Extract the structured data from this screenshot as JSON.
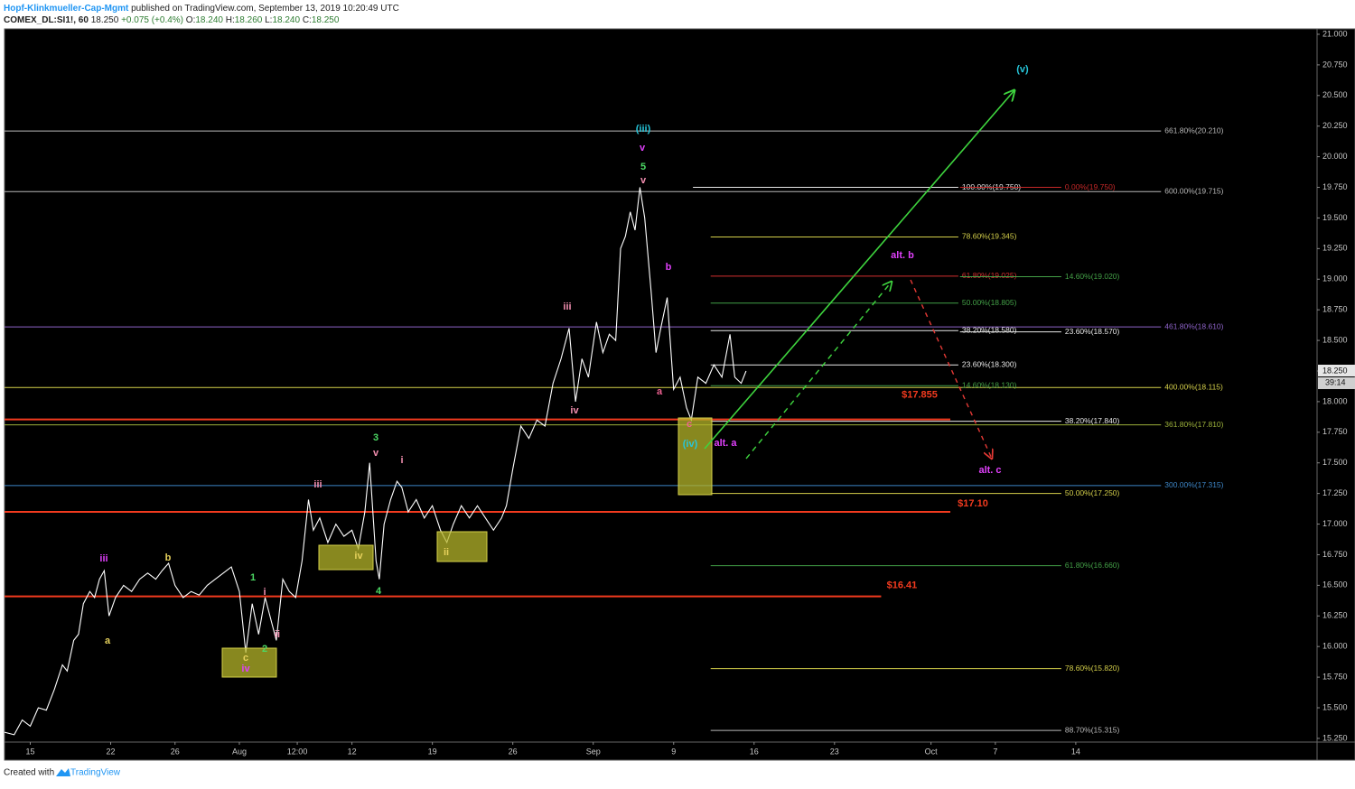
{
  "header": {
    "publisher": "Hopf-Klinkmueller-Cap-Mgmt",
    "published": "published on TradingView.com, September 13, 2019 10:20:49 UTC",
    "symbol": "COMEX_DL:SI1!, 60",
    "last": "18.250",
    "change": "+0.075 (+0.4%)",
    "ohlc": [
      {
        "key": "O:",
        "value": "18.240"
      },
      {
        "key": "H:",
        "value": "18.260"
      },
      {
        "key": "L:",
        "value": "18.240"
      },
      {
        "key": "C:",
        "value": "18.250"
      }
    ]
  },
  "footer": {
    "created": "Created with",
    "brand": "TradingView"
  },
  "chart_data": {
    "type": "line",
    "color": "#ffffff",
    "x": [
      -1.6,
      -1,
      -0.5,
      0,
      0.5,
      1,
      1.5,
      2,
      2.3,
      2.7,
      3,
      3.3,
      3.7,
      4,
      4.3,
      4.6,
      4.9,
      5.3,
      5.8,
      6.3,
      6.8,
      7.3,
      7.8,
      8.2,
      8.6,
      9,
      9.5,
      10,
      10.5,
      11,
      11.5,
      12,
      12.5,
      13,
      13.4,
      13.8,
      14.2,
      14.6,
      15,
      15.3,
      15.7,
      16.1,
      16.5,
      16.9,
      17.3,
      17.6,
      18,
      18.5,
      19,
      19.5,
      20,
      20.4,
      20.8,
      21.1,
      21.5,
      21.7,
      22,
      22.4,
      22.8,
      23.1,
      23.5,
      24,
      24.5,
      25,
      25.5,
      25.9,
      26.3,
      26.8,
      27.3,
      27.8,
      28.3,
      28.8,
      29.3,
      29.6,
      30,
      30.5,
      31,
      31.5,
      32,
      32.5,
      33,
      33.5,
      33.9,
      34.3,
      34.7,
      35.2,
      35.6,
      36,
      36.4,
      36.7,
      37,
      37.3,
      37.6,
      37.9,
      38.2,
      38.6,
      38.9,
      39.2,
      39.6,
      40,
      40.4,
      40.8,
      41.1,
      41.5,
      42,
      42.5,
      43,
      43.5,
      43.8,
      44.2,
      44.5
    ],
    "values": [
      15.3,
      15.28,
      15.4,
      15.35,
      15.5,
      15.48,
      15.65,
      15.85,
      15.8,
      16.05,
      16.1,
      16.35,
      16.45,
      16.4,
      16.55,
      16.62,
      16.25,
      16.4,
      16.5,
      16.45,
      16.55,
      16.6,
      16.55,
      16.62,
      16.68,
      16.5,
      16.4,
      16.45,
      16.42,
      16.5,
      16.55,
      16.6,
      16.65,
      16.45,
      15.95,
      16.35,
      16.1,
      16.4,
      16.2,
      16.05,
      16.55,
      16.45,
      16.4,
      16.7,
      17.2,
      16.95,
      17.05,
      16.85,
      17.0,
      16.9,
      16.95,
      16.8,
      17.1,
      17.5,
      16.7,
      16.55,
      17.0,
      17.2,
      17.35,
      17.3,
      17.1,
      17.2,
      17.05,
      17.15,
      16.95,
      16.85,
      17.0,
      17.15,
      17.05,
      17.15,
      17.05,
      16.95,
      17.05,
      17.15,
      17.45,
      17.8,
      17.7,
      17.85,
      17.8,
      18.15,
      18.35,
      18.6,
      18.0,
      18.35,
      18.2,
      18.65,
      18.4,
      18.55,
      18.5,
      19.25,
      19.35,
      19.55,
      19.4,
      19.75,
      19.5,
      18.9,
      18.4,
      18.6,
      18.85,
      18.1,
      18.2,
      17.95,
      17.85,
      18.2,
      18.15,
      18.3,
      18.2,
      18.55,
      18.2,
      18.15,
      18.25
    ],
    "xlim": [
      -1.6,
      80
    ],
    "ylim": [
      15.22,
      21.044
    ],
    "xticks": [
      {
        "value": 0,
        "label": "15"
      },
      {
        "value": 5,
        "label": "22"
      },
      {
        "value": 9,
        "label": "26"
      },
      {
        "value": 13,
        "label": "Aug"
      },
      {
        "value": 16.6,
        "label": "12:00"
      },
      {
        "value": 20,
        "label": "12"
      },
      {
        "value": 25,
        "label": "19"
      },
      {
        "value": 30,
        "label": "26"
      },
      {
        "value": 35,
        "label": "Sep"
      },
      {
        "value": 40,
        "label": "9"
      },
      {
        "value": 45,
        "label": "16"
      },
      {
        "value": 50,
        "label": "23"
      },
      {
        "value": 56,
        "label": "Oct"
      },
      {
        "value": 60,
        "label": "7"
      },
      {
        "value": 65,
        "label": "14"
      }
    ],
    "yticks": [
      {
        "value": 15.25,
        "label": "15.250"
      },
      {
        "value": 15.5,
        "label": "15.500"
      },
      {
        "value": 15.75,
        "label": "15.750"
      },
      {
        "value": 16,
        "label": "16.000"
      },
      {
        "value": 16.25,
        "label": "16.250"
      },
      {
        "value": 16.5,
        "label": "16.500"
      },
      {
        "value": 16.75,
        "label": "16.750"
      },
      {
        "value": 17,
        "label": "17.000"
      },
      {
        "value": 17.25,
        "label": "17.250"
      },
      {
        "value": 17.5,
        "label": "17.500"
      },
      {
        "value": 17.75,
        "label": "17.750"
      },
      {
        "value": 18,
        "label": "18.000"
      },
      {
        "value": 18.25,
        "label": "18.250"
      },
      {
        "value": 18.5,
        "label": "18.500"
      },
      {
        "value": 18.75,
        "label": "18.750"
      },
      {
        "value": 19,
        "label": "19.000"
      },
      {
        "value": 19.25,
        "label": "19.250"
      },
      {
        "value": 19.5,
        "label": "19.500"
      },
      {
        "value": 19.75,
        "label": "19.750"
      },
      {
        "value": 20,
        "label": "20.000"
      },
      {
        "value": 20.25,
        "label": "20.250"
      },
      {
        "value": 20.5,
        "label": "20.500"
      },
      {
        "value": 20.75,
        "label": "20.750"
      },
      {
        "value": 21,
        "label": "21.000"
      }
    ],
    "price_tag": {
      "value": 18.25,
      "label": "18.250",
      "countdown": "39:14"
    },
    "levels": [
      {
        "value": 20.21,
        "label": "661.80%(20.210)",
        "color": "#b8b8b8",
        "from": -1.6,
        "to": 70.3
      },
      {
        "value": 19.715,
        "label": "600.00%(19.715)",
        "color": "#b8b8b8",
        "from": -1.6,
        "to": 70.3
      },
      {
        "value": 18.61,
        "label": "461.80%(18.610)",
        "color": "#8e63c9",
        "from": -1.6,
        "to": 70.3
      },
      {
        "value": 18.115,
        "label": "400.00%(18.115)",
        "color": "#d4cf4a",
        "from": -1.6,
        "to": 70.3
      },
      {
        "value": 17.81,
        "label": "361.80%(17.810)",
        "color": "#9bb03a",
        "from": -1.6,
        "to": 70.3
      },
      {
        "value": 17.315,
        "label": "300.00%(17.315)",
        "color": "#3d85c6",
        "from": -1.6,
        "to": 70.3
      },
      {
        "value": 19.75,
        "label": "100.00%(19.750)",
        "color": "#e8e8e8",
        "from": 41.2,
        "to": 57.7
      },
      {
        "value": 19.75,
        "label": "0.00%(19.750)",
        "color": "#c62828",
        "from": 57.8,
        "to": 64.1
      },
      {
        "value": 19.345,
        "label": "78.60%(19.345)",
        "color": "#d4cf4a",
        "from": 42.3,
        "to": 57.7
      },
      {
        "value": 19.025,
        "label": "61.80%(19.025)",
        "color": "#d32f2f",
        "from": 42.3,
        "to": 57.7
      },
      {
        "value": 19.02,
        "label": "14.60%(19.020)",
        "color": "#43a047",
        "from": 57.8,
        "to": 64.1
      },
      {
        "value": 18.805,
        "label": "50.00%(18.805)",
        "color": "#43a047",
        "from": 42.3,
        "to": 57.7
      },
      {
        "value": 18.58,
        "label": "38.20%(18.580)",
        "color": "#e8e8e8",
        "from": 42.3,
        "to": 57.7
      },
      {
        "value": 18.57,
        "label": "23.60%(18.570)",
        "color": "#e8e8e8",
        "from": 57.8,
        "to": 64.1
      },
      {
        "value": 18.3,
        "label": "23.60%(18.300)",
        "color": "#e8e8e8",
        "from": 42.3,
        "to": 57.7
      },
      {
        "value": 18.13,
        "label": "14.60%(18.130)",
        "color": "#43a047",
        "from": 42.3,
        "to": 57.7
      },
      {
        "value": 17.84,
        "label": "38.20%(17.840)",
        "color": "#e8e8e8",
        "from": 42.3,
        "to": 64.1
      },
      {
        "value": 17.25,
        "label": "50.00%(17.250)",
        "color": "#d4cf4a",
        "from": 42.3,
        "to": 64.1
      },
      {
        "value": 16.66,
        "label": "61.80%(16.660)",
        "color": "#43a047",
        "from": 42.3,
        "to": 64.1
      },
      {
        "value": 15.82,
        "label": "78.60%(15.820)",
        "color": "#d4cf4a",
        "from": 42.3,
        "to": 64.1
      },
      {
        "value": 15.315,
        "label": "88.70%(15.315)",
        "color": "#b8b8b8",
        "from": 42.3,
        "to": 64.1
      }
    ],
    "supports": [
      {
        "value": 17.855,
        "label": "$17.855",
        "color": "#f23a1e",
        "from": -1.6,
        "to": 57.2
      },
      {
        "value": 17.1,
        "label": "$17.10",
        "color": "#f23a1e",
        "from": -1.6,
        "to": 57.2
      },
      {
        "value": 16.41,
        "label": "$16.41",
        "color": "#f23a1e",
        "from": -1.6,
        "to": 52.9
      }
    ],
    "annotations": [
      {
        "text": "(v)",
        "color": "#26c6da"
      },
      {
        "text": "(iii)",
        "color": "#26c6da"
      },
      {
        "text": "v",
        "color": "#e040fb"
      },
      {
        "text": "5",
        "color": "#4cd964"
      },
      {
        "text": "v",
        "color": "#f48fb1"
      },
      {
        "text": "b",
        "color": "#e040fb"
      },
      {
        "text": "iii",
        "color": "#f48fb1"
      },
      {
        "text": "iv",
        "color": "#f48fb1"
      },
      {
        "text": "a",
        "color": "#f06292"
      },
      {
        "text": "c",
        "color": "#f06292"
      },
      {
        "text": "(iv)",
        "color": "#26c6da"
      },
      {
        "text": "alt. a",
        "color": "#e040fb"
      },
      {
        "text": "alt. b",
        "color": "#e040fb"
      },
      {
        "text": "alt. c",
        "color": "#e040fb"
      },
      {
        "text": "iii",
        "color": "#e040fb"
      },
      {
        "text": "b",
        "color": "#e6d15c"
      },
      {
        "text": "a",
        "color": "#e6d15c"
      },
      {
        "text": "1",
        "color": "#4cd964"
      },
      {
        "text": "i",
        "color": "#f48fb1"
      },
      {
        "text": "ii",
        "color": "#f48fb1"
      },
      {
        "text": "2",
        "color": "#4cd964"
      },
      {
        "text": "c",
        "color": "#e6d15c"
      },
      {
        "text": "iv",
        "color": "#e040fb"
      },
      {
        "text": "iii",
        "color": "#f48fb1"
      },
      {
        "text": "3",
        "color": "#4cd964"
      },
      {
        "text": "v",
        "color": "#f48fb1"
      },
      {
        "text": "i",
        "color": "#f48fb1"
      },
      {
        "text": "iv",
        "color": "#e6d15c"
      },
      {
        "text": "4",
        "color": "#4cd964"
      },
      {
        "text": "ii",
        "color": "#e6d15c"
      }
    ]
  }
}
